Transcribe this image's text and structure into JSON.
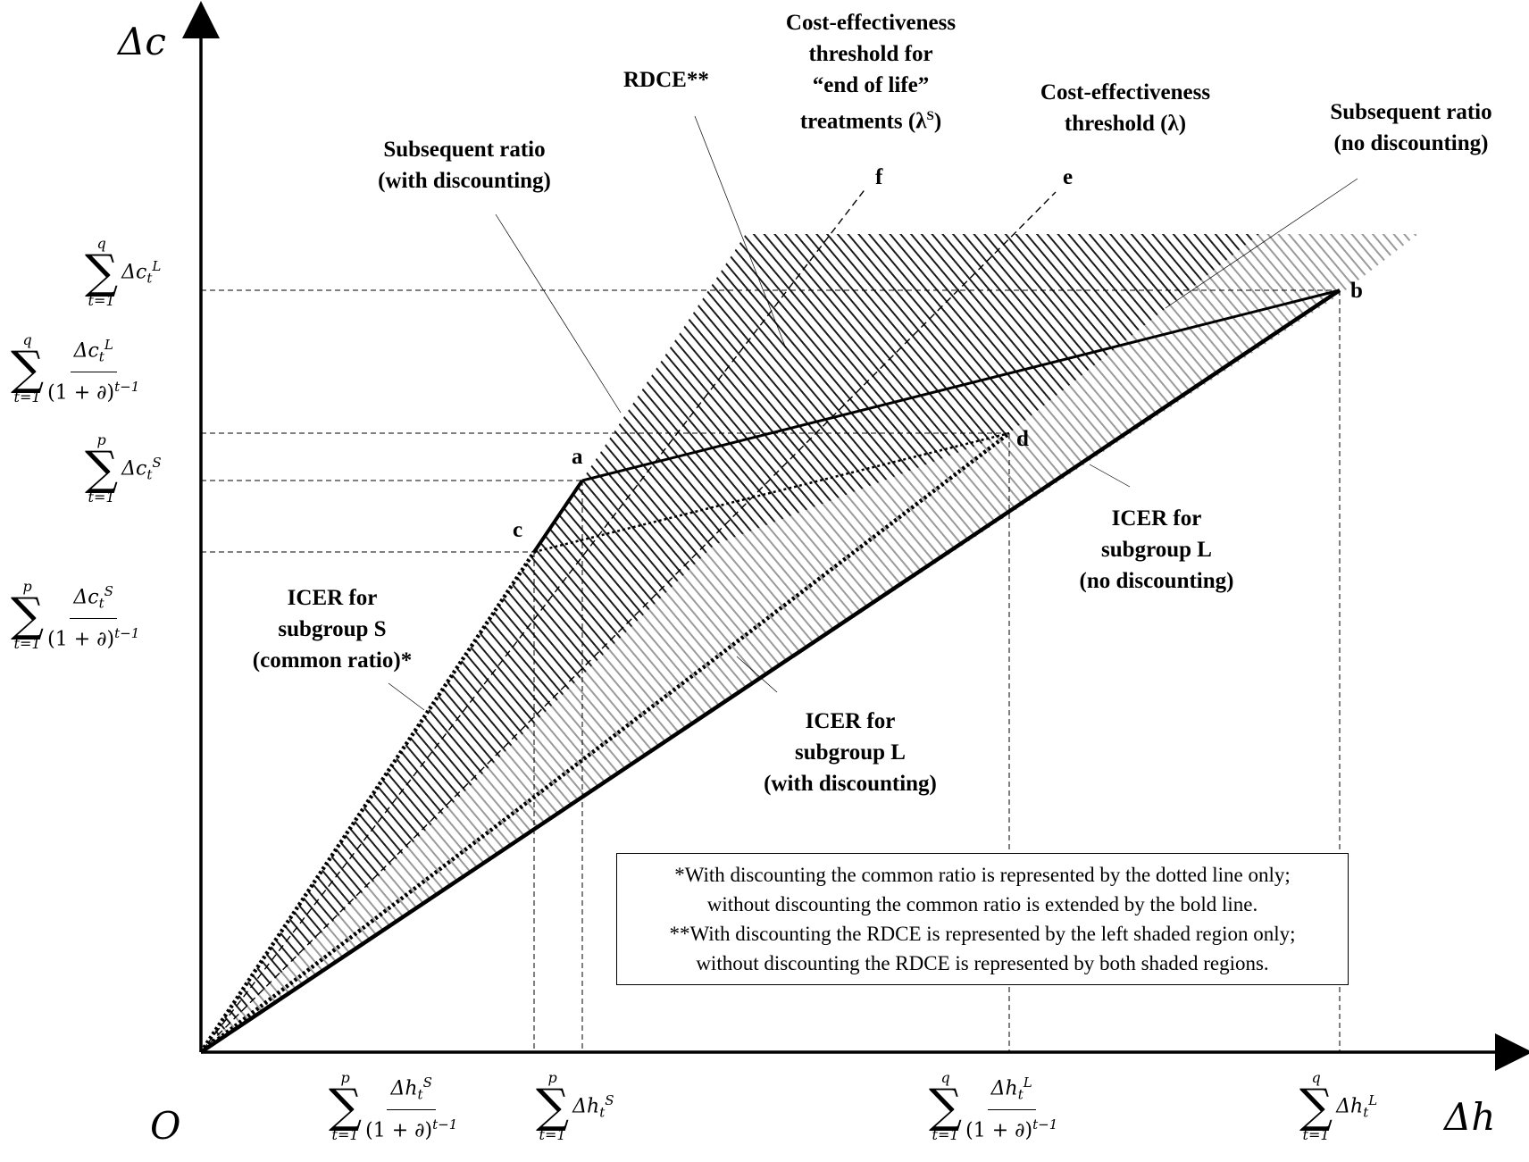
{
  "axes": {
    "y_symbol": "Δc",
    "x_symbol": "Δh",
    "origin": "O"
  },
  "points": {
    "a": "a",
    "b": "b",
    "c": "c",
    "d": "d",
    "e": "e",
    "f": "f"
  },
  "labels": {
    "rdce": "RDCE**",
    "eol_threshold_1": "Cost-effectiveness",
    "eol_threshold_2": "threshold for",
    "eol_threshold_3": "“end of life”",
    "eol_threshold_4": "treatments (λ",
    "eol_threshold_sup": "S",
    "eol_threshold_5": ")",
    "threshold_1": "Cost-effectiveness",
    "threshold_2": "threshold (λ)",
    "subseq_nodisc_1": "Subsequent ratio",
    "subseq_nodisc_2": "(no discounting)",
    "subseq_disc_1": "Subsequent ratio",
    "subseq_disc_2": "(with discounting)",
    "icer_s_1": "ICER for",
    "icer_s_2": "subgroup S",
    "icer_s_3": "(common ratio)*",
    "icer_l_nodisc_1": "ICER for",
    "icer_l_nodisc_2": "subgroup L",
    "icer_l_nodisc_3": "(no discounting)",
    "icer_l_disc_1": "ICER for",
    "icer_l_disc_2": "subgroup L",
    "icer_l_disc_3": "(with discounting)"
  },
  "note": {
    "line1": "*With discounting the common ratio is represented by the dotted line only;",
    "line2": "without discounting the common ratio is extended by the bold line.",
    "line3": "**With discounting the RDCE is represented by the left shaded region only;",
    "line4": "without discounting the RDCE is represented by both shaded regions."
  },
  "math": {
    "sigma": "∑",
    "t1": "t=1",
    "q": "q",
    "p": "p",
    "denom": "(1 + ∂)",
    "exp": "t−1",
    "dc": "Δc",
    "dh": "Δh",
    "L": "L",
    "S": "S",
    "t": "t"
  }
}
